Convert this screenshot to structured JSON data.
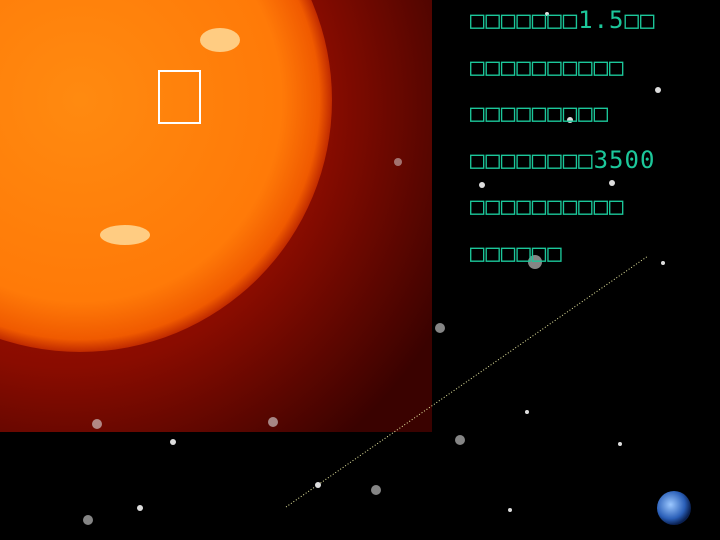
{
  "text_lines": [
    "□□□□□□□1.5□□",
    "□□□□□□□□□□",
    "□□□□□□□□□",
    "□□□□□□□□3500",
    "□□□□□□□□□□",
    "□□□□□□"
  ]
}
